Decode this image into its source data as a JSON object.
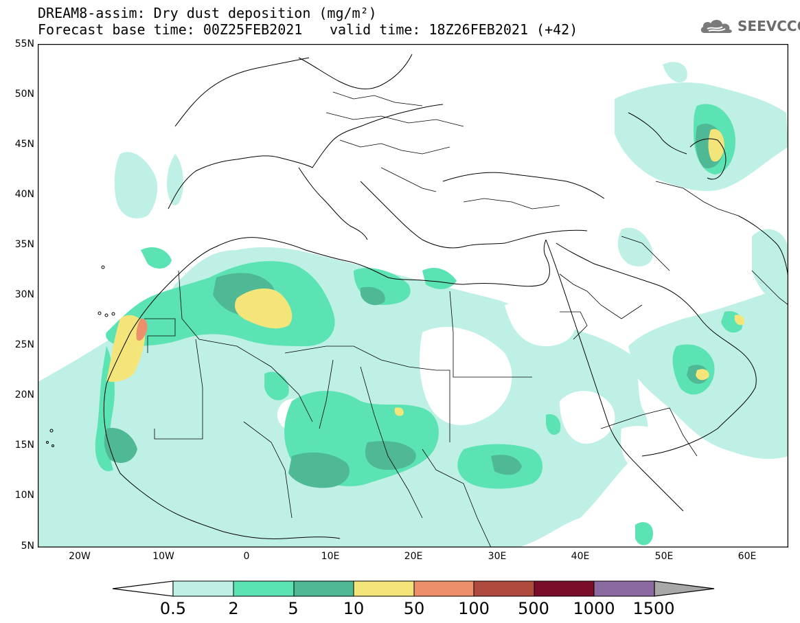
{
  "header": {
    "title": "DREAM8-assim: Dry dust deposition (mg/m²)",
    "base_time": "Forecast base time: 00Z25FEB2021",
    "valid_time": "valid time: 18Z26FEB2021 (+42)"
  },
  "logo": {
    "text": "SEEVCCC",
    "icon": "cloud-icon"
  },
  "axes": {
    "lat_labels": [
      "55N",
      "50N",
      "45N",
      "40N",
      "35N",
      "30N",
      "25N",
      "20N",
      "15N",
      "10N",
      "5N"
    ],
    "lon_labels": [
      "20W",
      "10W",
      "0",
      "10E",
      "20E",
      "30E",
      "40E",
      "50E",
      "60E"
    ]
  },
  "colorbar": {
    "labels": [
      "0.5",
      "2",
      "5",
      "10",
      "50",
      "100",
      "500",
      "1000",
      "1500"
    ],
    "colors": [
      "#bff0e6",
      "#5ce3b4",
      "#4fb894",
      "#f4e57a",
      "#ec8f6b",
      "#b04a3f",
      "#7a0e2a",
      "#8a6aa0",
      "#a8a8a8"
    ],
    "under_color": "#ffffff",
    "over_color": "#a8a8a8"
  },
  "map_colors": {
    "land_line": "#000000",
    "frame": "#000000",
    "background": "#ffffff"
  }
}
